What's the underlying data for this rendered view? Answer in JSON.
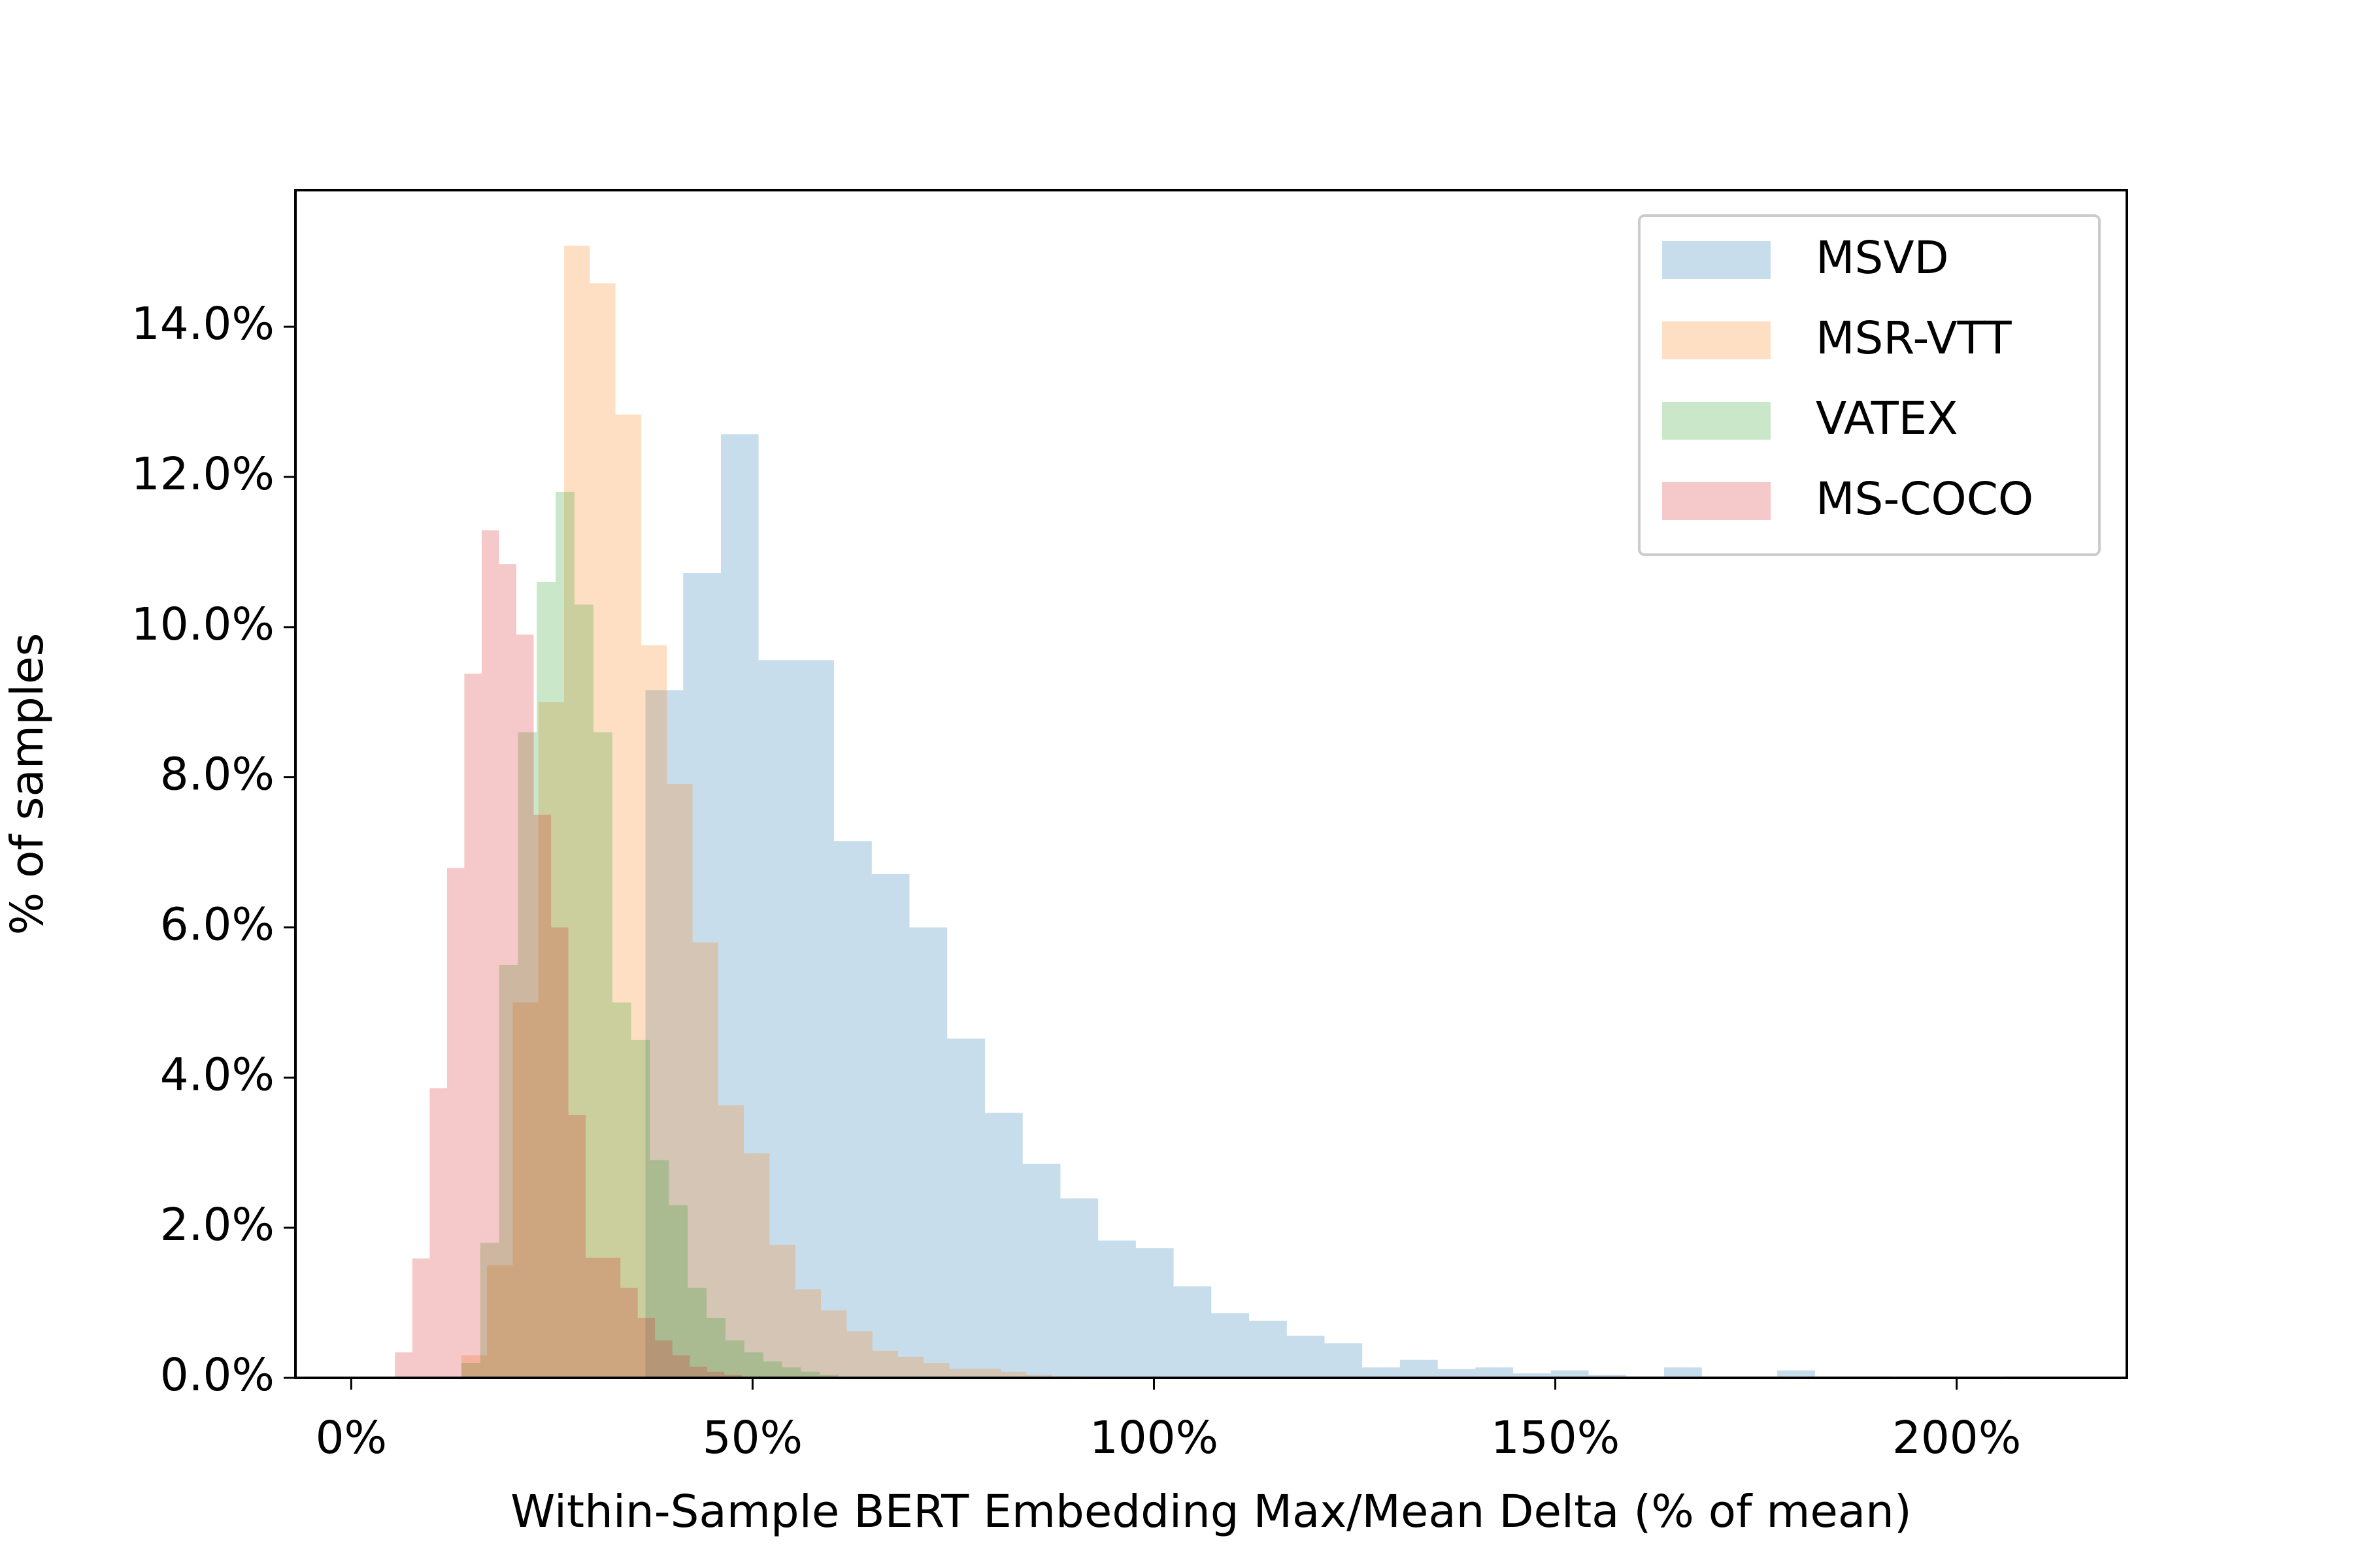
{
  "chart_data": {
    "type": "histogram",
    "x_label": "Within-Sample BERT Embedding Max/Mean Delta (% of mean)",
    "y_label": "% of samples",
    "xlim": [
      -6.95,
      221.2
    ],
    "ylim": [
      0,
      15.82
    ],
    "xticks": [
      {
        "value": 0,
        "label": "0%"
      },
      {
        "value": 50,
        "label": "50%"
      },
      {
        "value": 100,
        "label": "100%"
      },
      {
        "value": 150,
        "label": "150%"
      },
      {
        "value": 200,
        "label": "200%"
      }
    ],
    "yticks": [
      {
        "value": 0,
        "label": "0.0%"
      },
      {
        "value": 2,
        "label": "2.0%"
      },
      {
        "value": 4,
        "label": "4.0%"
      },
      {
        "value": 6,
        "label": "6.0%"
      },
      {
        "value": 8,
        "label": "8.0%"
      },
      {
        "value": 10,
        "label": "10.0%"
      },
      {
        "value": 12,
        "label": "12.0%"
      },
      {
        "value": 14,
        "label": "14.0%"
      }
    ],
    "legend": "upper right",
    "opacity": 0.25,
    "series": [
      {
        "name": "MSVD",
        "color": "#1f77b4",
        "bins": [
          36.65,
          41.35,
          46.05,
          50.75,
          55.45,
          60.15,
          64.85,
          69.55,
          74.25,
          78.95,
          83.65,
          88.35,
          93.05,
          97.75,
          102.45,
          107.15,
          111.85,
          116.55,
          121.25,
          125.95,
          130.65,
          135.35,
          140.05,
          144.75,
          149.45,
          154.15,
          158.85,
          163.55,
          168.25,
          172.95,
          177.65,
          182.35,
          187.05,
          191.75,
          196.45,
          201.15,
          205.85,
          210.55
        ],
        "values": [
          9.16,
          10.72,
          12.57,
          9.56,
          9.56,
          7.15,
          6.71,
          6.0,
          4.52,
          3.53,
          2.85,
          2.39,
          1.83,
          1.73,
          1.22,
          0.86,
          0.76,
          0.56,
          0.46,
          0.14,
          0.24,
          0.12,
          0.14,
          0.06,
          0.1,
          0.04,
          0.02,
          0.14,
          0.02,
          0.02,
          0.1,
          0.02,
          0.02,
          0,
          0,
          0,
          0.02
        ]
      },
      {
        "name": "MSR-VTT",
        "color": "#ff7f0e",
        "bins": [
          13.72,
          16.92,
          20.12,
          23.32,
          26.52,
          29.72,
          32.92,
          36.12,
          39.32,
          42.52,
          45.72,
          48.92,
          52.12,
          55.32,
          58.52,
          61.72,
          64.92,
          68.12,
          71.32,
          74.52,
          77.72,
          80.92,
          84.12,
          87.32,
          90.52
        ],
        "values": [
          0.3,
          1.5,
          5.0,
          9.0,
          15.08,
          14.58,
          12.83,
          9.76,
          7.91,
          5.8,
          3.63,
          2.99,
          1.77,
          1.18,
          0.9,
          0.62,
          0.36,
          0.28,
          0.2,
          0.12,
          0.12,
          0.08,
          0.04,
          0.02
        ]
      },
      {
        "name": "VATEX",
        "color": "#2ca02c",
        "bins": [
          13.72,
          16.07,
          18.42,
          20.77,
          23.12,
          25.47,
          27.82,
          30.17,
          32.52,
          34.87,
          37.22,
          39.57,
          41.92,
          44.27,
          46.62,
          48.97,
          51.32,
          53.67,
          56.02,
          58.37,
          60.72
        ],
        "values": [
          0.2,
          1.8,
          5.5,
          8.6,
          10.6,
          11.8,
          10.3,
          8.6,
          5.0,
          4.5,
          2.9,
          2.3,
          1.2,
          0.8,
          0.5,
          0.34,
          0.22,
          0.14,
          0.08,
          0.04
        ]
      },
      {
        "name": "MS-COCO",
        "color": "#d62728",
        "bins": [
          5.45,
          7.61,
          9.77,
          11.93,
          14.09,
          16.25,
          18.41,
          20.57,
          22.73,
          24.89,
          27.05,
          29.21,
          31.37,
          33.53,
          35.69,
          37.85,
          40.01,
          42.17,
          44.33,
          46.49,
          48.65
        ],
        "values": [
          0.34,
          1.59,
          3.86,
          6.79,
          9.38,
          11.29,
          10.84,
          9.9,
          7.5,
          6.0,
          3.5,
          1.6,
          1.6,
          1.2,
          0.8,
          0.5,
          0.3,
          0.15,
          0.08,
          0.04
        ]
      }
    ]
  }
}
